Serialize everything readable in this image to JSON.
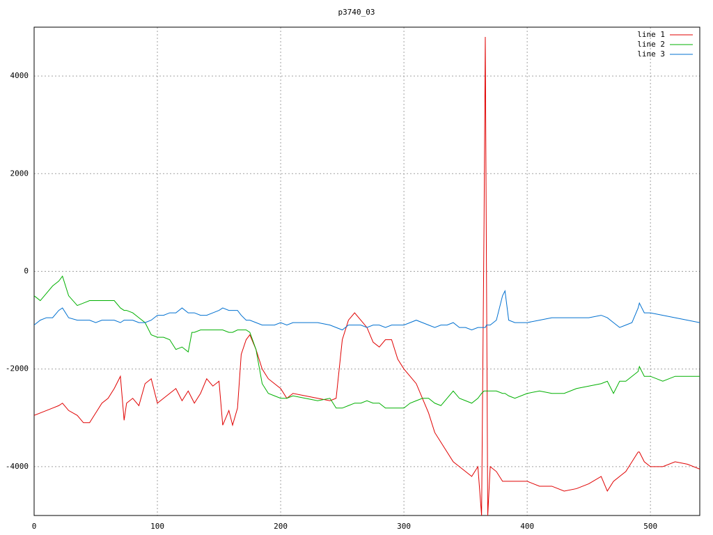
{
  "chart_data": {
    "type": "line",
    "title": "p3740_03",
    "x": [
      0,
      5,
      10,
      15,
      20,
      23,
      28,
      35,
      40,
      45,
      50,
      55,
      60,
      65,
      70,
      73,
      75,
      80,
      85,
      90,
      95,
      100,
      105,
      110,
      115,
      120,
      125,
      128,
      130,
      135,
      140,
      145,
      150,
      153,
      158,
      161,
      165,
      168,
      172,
      175,
      180,
      185,
      190,
      195,
      200,
      205,
      210,
      220,
      230,
      240,
      245,
      250,
      255,
      260,
      265,
      270,
      275,
      280,
      285,
      290,
      295,
      300,
      305,
      310,
      315,
      320,
      325,
      330,
      335,
      340,
      345,
      350,
      355,
      360,
      363,
      365,
      366,
      367,
      368,
      370,
      375,
      380,
      382,
      385,
      390,
      400,
      410,
      420,
      430,
      440,
      450,
      460,
      465,
      470,
      475,
      480,
      485,
      490,
      491,
      495,
      500,
      510,
      520,
      530,
      540
    ],
    "series": [
      {
        "name": "line 1",
        "color": "#e00000",
        "values": [
          -2950,
          -2900,
          -2850,
          -2800,
          -2750,
          -2700,
          -2850,
          -2950,
          -3100,
          -3100,
          -2900,
          -2700,
          -2600,
          -2400,
          -2150,
          -3050,
          -2700,
          -2600,
          -2750,
          -2300,
          -2200,
          -2700,
          -2600,
          -2500,
          -2400,
          -2650,
          -2450,
          -2600,
          -2700,
          -2500,
          -2200,
          -2350,
          -2250,
          -3150,
          -2850,
          -3150,
          -2800,
          -1700,
          -1400,
          -1300,
          -1600,
          -2000,
          -2200,
          -2300,
          -2400,
          -2600,
          -2500,
          -2550,
          -2600,
          -2650,
          -2600,
          -1400,
          -1000,
          -850,
          -1000,
          -1150,
          -1450,
          -1550,
          -1400,
          -1400,
          -1800,
          -2000,
          -2150,
          -2300,
          -2600,
          -2900,
          -3300,
          -3500,
          -3700,
          -3900,
          -4000,
          -4100,
          -4200,
          -4000,
          -5000,
          1000,
          4800,
          -100,
          -5000,
          -4000,
          -4100,
          -4300,
          -4300,
          -4300,
          -4300,
          -4300,
          -4400,
          -4400,
          -4500,
          -4450,
          -4350,
          -4200,
          -4500,
          -4300,
          -4200,
          -4100,
          -3900,
          -3700,
          -3700,
          -3900,
          -4000,
          -4000,
          -3900,
          -3950,
          -4050
        ]
      },
      {
        "name": "line 2",
        "color": "#00b000",
        "values": [
          -500,
          -600,
          -450,
          -300,
          -200,
          -100,
          -500,
          -700,
          -650,
          -600,
          -600,
          -600,
          -600,
          -600,
          -750,
          -800,
          -800,
          -850,
          -950,
          -1050,
          -1300,
          -1350,
          -1350,
          -1400,
          -1600,
          -1550,
          -1650,
          -1250,
          -1250,
          -1200,
          -1200,
          -1200,
          -1200,
          -1200,
          -1250,
          -1250,
          -1200,
          -1200,
          -1200,
          -1250,
          -1600,
          -2300,
          -2500,
          -2550,
          -2600,
          -2600,
          -2550,
          -2600,
          -2650,
          -2600,
          -2800,
          -2800,
          -2750,
          -2700,
          -2700,
          -2650,
          -2700,
          -2700,
          -2800,
          -2800,
          -2800,
          -2800,
          -2700,
          -2650,
          -2600,
          -2600,
          -2700,
          -2750,
          -2600,
          -2450,
          -2600,
          -2650,
          -2700,
          -2600,
          -2500,
          -2450,
          -2450,
          -2450,
          -2450,
          -2450,
          -2450,
          -2500,
          -2500,
          -2550,
          -2600,
          -2500,
          -2450,
          -2500,
          -2500,
          -2400,
          -2350,
          -2300,
          -2250,
          -2500,
          -2250,
          -2250,
          -2150,
          -2050,
          -1950,
          -2150,
          -2150,
          -2250,
          -2150,
          -2150,
          -2150
        ]
      },
      {
        "name": "line 3",
        "color": "#0070d0",
        "values": [
          -1100,
          -1000,
          -950,
          -950,
          -800,
          -750,
          -950,
          -1000,
          -1000,
          -1000,
          -1050,
          -1000,
          -1000,
          -1000,
          -1050,
          -1000,
          -1000,
          -1000,
          -1050,
          -1050,
          -1000,
          -900,
          -900,
          -850,
          -850,
          -750,
          -850,
          -850,
          -850,
          -900,
          -900,
          -850,
          -800,
          -750,
          -800,
          -800,
          -800,
          -900,
          -1000,
          -1000,
          -1050,
          -1100,
          -1100,
          -1100,
          -1050,
          -1100,
          -1050,
          -1050,
          -1050,
          -1100,
          -1150,
          -1200,
          -1100,
          -1100,
          -1100,
          -1150,
          -1100,
          -1100,
          -1150,
          -1100,
          -1100,
          -1100,
          -1050,
          -1000,
          -1050,
          -1100,
          -1150,
          -1100,
          -1100,
          -1050,
          -1150,
          -1150,
          -1200,
          -1150,
          -1150,
          -1150,
          -1150,
          -1100,
          -1100,
          -1100,
          -1000,
          -500,
          -400,
          -1000,
          -1050,
          -1050,
          -1000,
          -950,
          -950,
          -950,
          -950,
          -900,
          -950,
          -1050,
          -1150,
          -1100,
          -1050,
          -750,
          -650,
          -850,
          -850,
          -900,
          -950,
          -1000,
          -1050
        ]
      }
    ],
    "xlim": [
      0,
      540
    ],
    "xticks": [
      0,
      100,
      200,
      300,
      400,
      500
    ],
    "ylim": [
      -5000,
      5000
    ],
    "yticks": [
      -4000,
      -2000,
      0,
      2000,
      4000
    ],
    "grid": true,
    "legend": "top right"
  }
}
